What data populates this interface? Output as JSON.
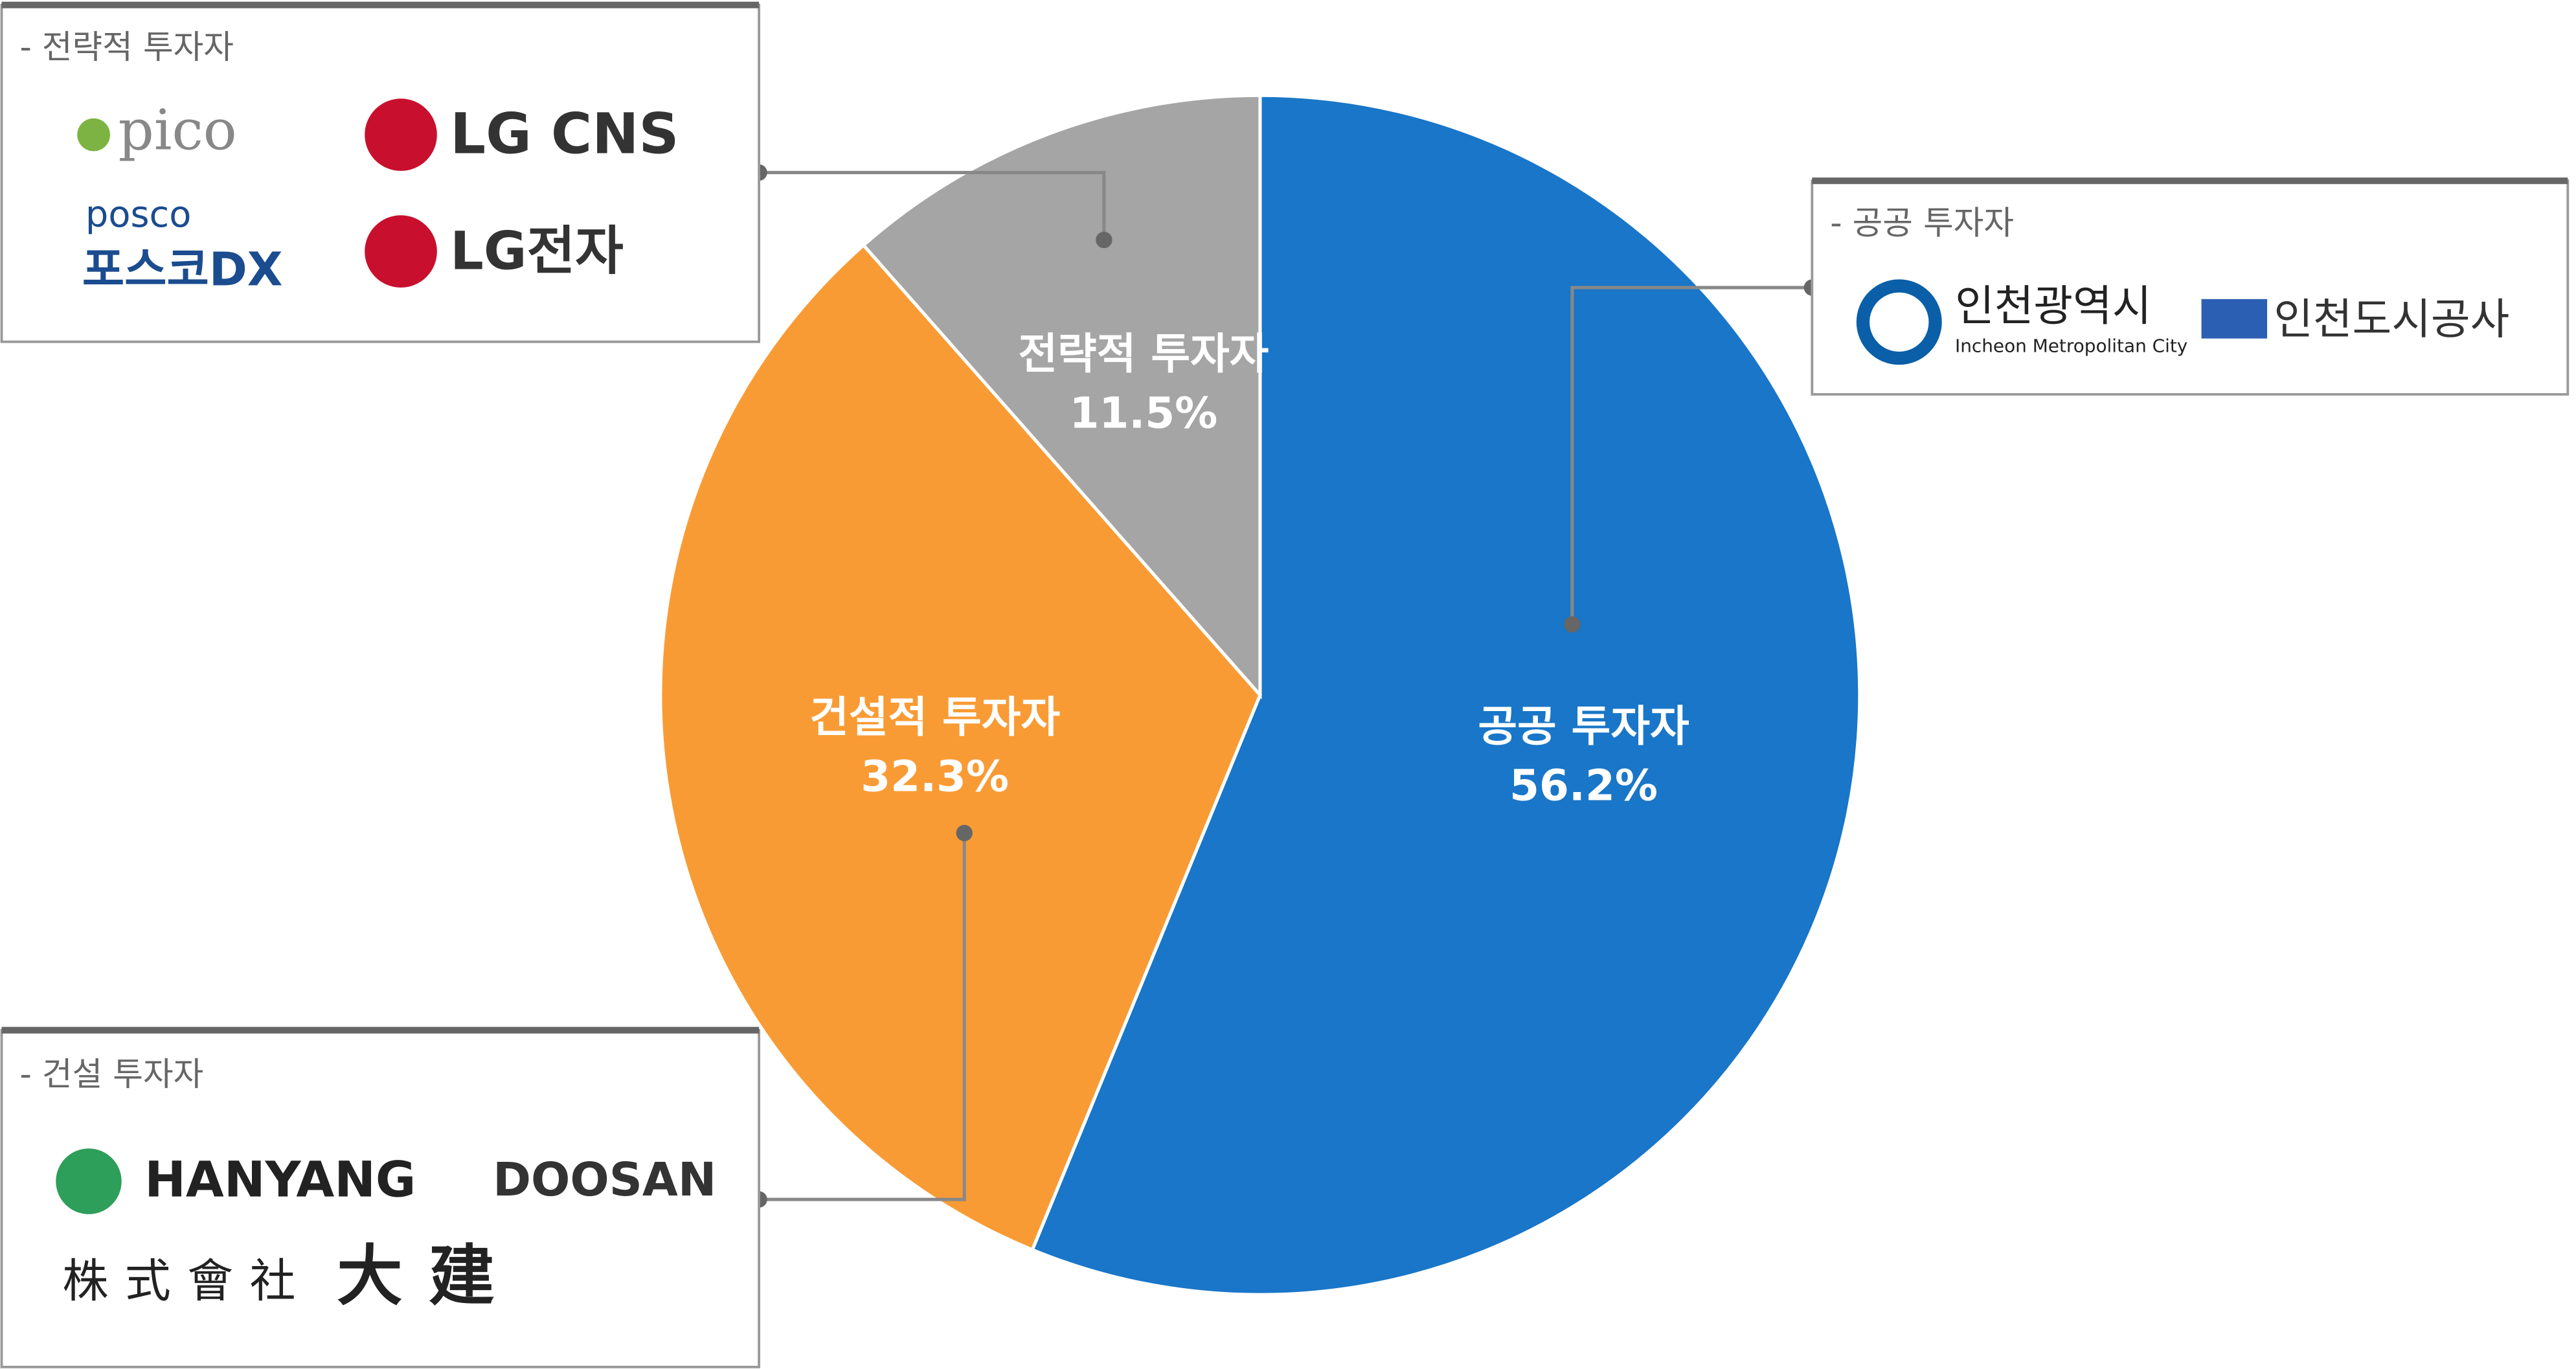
{
  "chart_data": {
    "type": "pie",
    "categories": [
      "공공 투자자",
      "건설적 투자자",
      "전략적 투자자"
    ],
    "values": [
      56.2,
      32.3,
      11.5
    ],
    "value_labels": [
      "56.2%",
      "32.3%",
      "11.5%"
    ],
    "colors": [
      "#1976c8",
      "#f99b34",
      "#a5a5a5"
    ],
    "callouts": [
      {
        "title": "- 전략적 투자자",
        "logos": [
          "pico",
          "LG CNS",
          "posco",
          "포스코DX",
          "LG전자"
        ]
      },
      {
        "title": "- 공공 투자자",
        "logos": [
          "인천광역시",
          "Incheon Metropolitan City",
          "인천도시공사"
        ]
      },
      {
        "title": "- 건설 투자자",
        "logos": [
          "HANYANG",
          "DOOSAN",
          "株式會社",
          "大建"
        ]
      }
    ]
  }
}
